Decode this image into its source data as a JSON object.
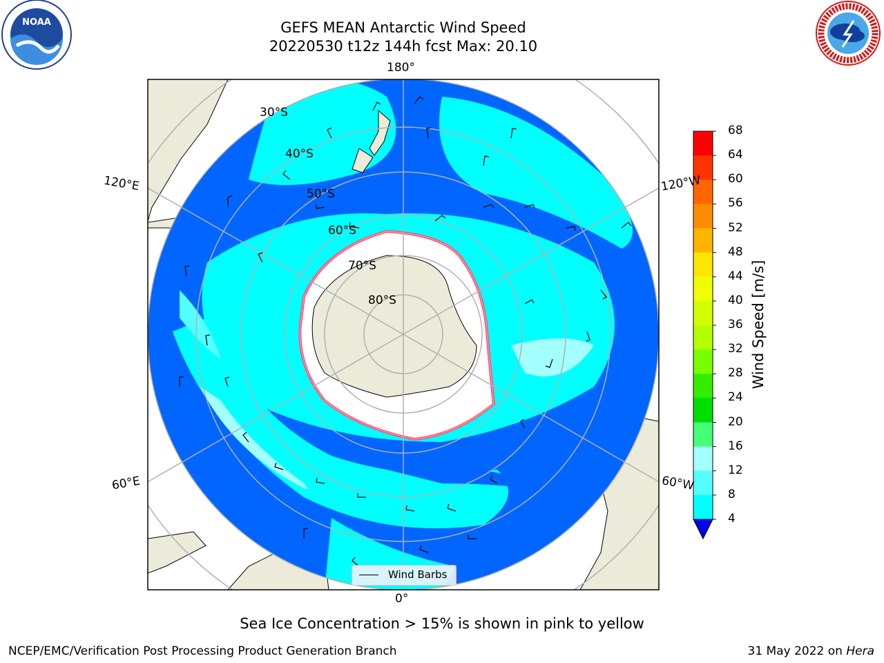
{
  "header": {
    "title_line1": "GEFS MEAN Antarctic Wind Speed",
    "title_line2": "20220530 t12z 144h fcst   Max: 20.10"
  },
  "logos": {
    "left_icon": "noaa-logo",
    "left_text": "NOAA",
    "right_icon": "nws-logo",
    "right_text": "NATIONAL WEATHER SERVICE"
  },
  "map": {
    "projection": "south-polar-stereographic",
    "lon_labels": {
      "top": "180°",
      "bottom": "0°",
      "upper_left": "120°E",
      "lower_left": "60°E",
      "upper_right": "120°W",
      "lower_right": "60°W"
    },
    "lat_labels": [
      "30°S",
      "40°S",
      "50°S",
      "60°S",
      "70°S",
      "80°S"
    ],
    "colors": {
      "ocean_low": "#0066ff",
      "ocean_mid": "#00ffff",
      "ocean_high": "#55ffff",
      "ocean_light": "#a4ffff",
      "land": "#ecebd9",
      "ice_edge": "#ff33dd"
    }
  },
  "colorbar": {
    "label": "Wind Speed [m/s]",
    "ticks": [
      "68",
      "64",
      "60",
      "56",
      "52",
      "48",
      "44",
      "40",
      "36",
      "32",
      "28",
      "24",
      "20",
      "16",
      "12",
      "8",
      "4"
    ],
    "colors": [
      "#ff0000",
      "#ff3300",
      "#ff6600",
      "#ff8c00",
      "#ffb400",
      "#ffe600",
      "#f0ff00",
      "#d2ff00",
      "#b4ff00",
      "#78ff00",
      "#33ee00",
      "#00dd00",
      "#44ff77",
      "#a4ffff",
      "#55ffff",
      "#00ffff",
      "#0066ff",
      "#0000ee"
    ]
  },
  "legend": {
    "label": "Wind Barbs"
  },
  "caption": "Sea Ice Concentration > 15% is shown in pink to yellow",
  "footer": {
    "left": "NCEP/EMC/Verification Post Processing Product Generation Branch",
    "right_prefix": "31 May 2022 on ",
    "right_italic": "Hera"
  }
}
